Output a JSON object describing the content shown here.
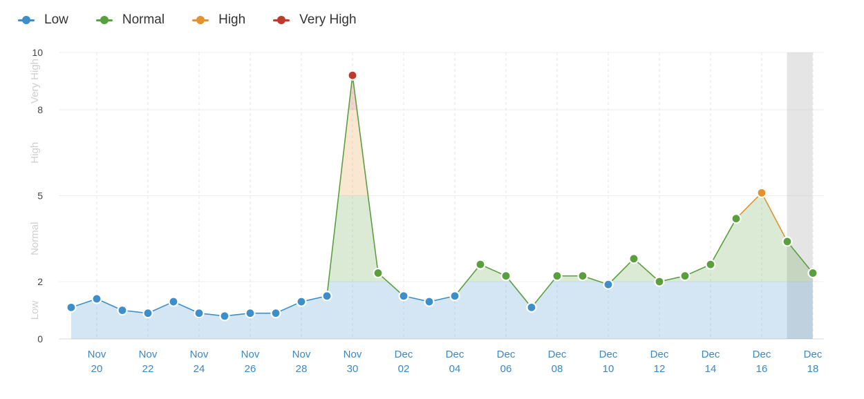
{
  "legend": [
    {
      "label": "Low",
      "color": "#3d8ec9"
    },
    {
      "label": "Normal",
      "color": "#5a9f3e"
    },
    {
      "label": "High",
      "color": "#e2922f"
    },
    {
      "label": "Very High",
      "color": "#c0392b"
    }
  ],
  "chart_data": {
    "type": "area",
    "title": "",
    "xlabel": "",
    "ylabel": "",
    "ylim": [
      0,
      10
    ],
    "y_ticks": [
      "0",
      "2",
      "5",
      "8",
      "10"
    ],
    "y_tick_values": [
      0,
      2,
      5,
      8,
      10
    ],
    "bands": [
      {
        "label": "Low",
        "from": 0,
        "to": 2,
        "color": "#3d8ec9"
      },
      {
        "label": "Normal",
        "from": 2,
        "to": 5,
        "color": "#5a9f3e"
      },
      {
        "label": "High",
        "from": 5,
        "to": 8,
        "color": "#e2922f"
      },
      {
        "label": "Very High",
        "from": 8,
        "to": 10,
        "color": "#c0392b"
      }
    ],
    "x_tick_labels": [
      {
        "day": 1,
        "top": "Nov",
        "bottom": "20"
      },
      {
        "day": 3,
        "top": "Nov",
        "bottom": "22"
      },
      {
        "day": 5,
        "top": "Nov",
        "bottom": "24"
      },
      {
        "day": 7,
        "top": "Nov",
        "bottom": "26"
      },
      {
        "day": 9,
        "top": "Nov",
        "bottom": "28"
      },
      {
        "day": 11,
        "top": "Nov",
        "bottom": "30"
      },
      {
        "day": 13,
        "top": "Dec",
        "bottom": "02"
      },
      {
        "day": 15,
        "top": "Dec",
        "bottom": "04"
      },
      {
        "day": 17,
        "top": "Dec",
        "bottom": "06"
      },
      {
        "day": 19,
        "top": "Dec",
        "bottom": "08"
      },
      {
        "day": 21,
        "top": "Dec",
        "bottom": "10"
      },
      {
        "day": 23,
        "top": "Dec",
        "bottom": "12"
      },
      {
        "day": 25,
        "top": "Dec",
        "bottom": "14"
      },
      {
        "day": 27,
        "top": "Dec",
        "bottom": "16"
      },
      {
        "day": 29,
        "top": "Dec",
        "bottom": "18"
      }
    ],
    "x_dates": [
      "Nov 19",
      "Nov 20",
      "Nov 21",
      "Nov 22",
      "Nov 23",
      "Nov 24",
      "Nov 25",
      "Nov 26",
      "Nov 27",
      "Nov 28",
      "Nov 29",
      "Nov 30",
      "Dec 01",
      "Dec 02",
      "Dec 03",
      "Dec 04",
      "Dec 05",
      "Dec 06",
      "Dec 07",
      "Dec 08",
      "Dec 09",
      "Dec 10",
      "Dec 11",
      "Dec 12",
      "Dec 13",
      "Dec 14",
      "Dec 15",
      "Dec 16",
      "Dec 17",
      "Dec 18"
    ],
    "values": [
      1.1,
      1.4,
      1.0,
      0.9,
      1.3,
      0.9,
      0.8,
      0.9,
      0.9,
      1.3,
      1.5,
      9.2,
      2.3,
      1.5,
      1.3,
      1.5,
      2.6,
      2.2,
      1.1,
      2.2,
      2.2,
      1.9,
      2.8,
      2.0,
      2.2,
      2.6,
      4.2,
      5.1,
      3.4,
      2.3
    ],
    "highlight_range": [
      "Dec 17",
      "Dec 17"
    ],
    "grid": true,
    "legend_position": "top-left"
  }
}
